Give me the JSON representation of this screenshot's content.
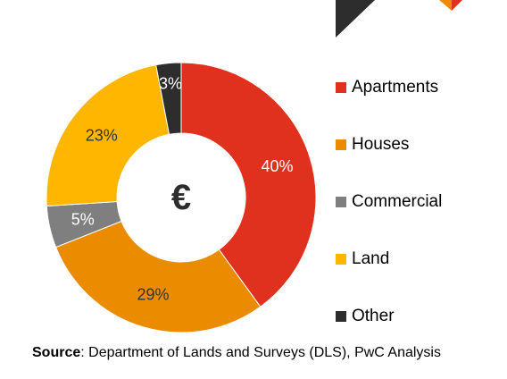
{
  "colors": {
    "apartments": "#e0301e",
    "houses": "#eb8c00",
    "commercial": "#7f7f7f",
    "land": "#ffb600",
    "other": "#2d2d2d"
  },
  "chart_data": {
    "type": "pie",
    "variant": "donut",
    "title": "",
    "center_symbol": "€",
    "legend_position": "right",
    "slices": [
      {
        "name": "Apartments",
        "value": 40,
        "label": "40%",
        "color": "#e0301e"
      },
      {
        "name": "Houses",
        "value": 29,
        "label": "29%",
        "color": "#eb8c00"
      },
      {
        "name": "Commercial",
        "value": 5,
        "label": "5%",
        "color": "#7f7f7f"
      },
      {
        "name": "Land",
        "value": 23,
        "label": "23%",
        "color": "#ffb600"
      },
      {
        "name": "Other",
        "value": 3,
        "label": "3%",
        "color": "#2d2d2d"
      }
    ]
  },
  "source": {
    "prefix": "Source",
    "text": ": Department of Lands and Surveys (DLS), PwC Analysis"
  }
}
